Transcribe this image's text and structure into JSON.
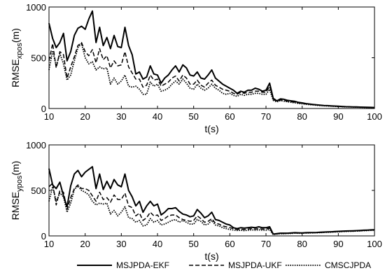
{
  "chart_data": [
    {
      "type": "line",
      "xlabel": "t(s)",
      "ylabel": {
        "base": "RMSE",
        "sub": "xpos",
        "unit": "(m)"
      },
      "xlim": [
        10,
        100
      ],
      "ylim": [
        0,
        1000
      ],
      "xticks": [
        10,
        20,
        30,
        40,
        50,
        60,
        70,
        80,
        90,
        100
      ],
      "yticks": [
        0,
        500,
        1000
      ],
      "grid": false,
      "series": [
        {
          "name": "MSJPDA-EKF",
          "x": [
            10,
            11,
            12,
            13,
            14,
            15,
            16,
            17,
            18,
            19,
            20,
            21,
            22,
            23,
            24,
            25,
            26,
            27,
            28,
            29,
            30,
            31,
            32,
            33,
            34,
            35,
            36,
            37,
            38,
            39,
            40,
            41,
            42,
            43,
            44,
            45,
            46,
            47,
            48,
            49,
            50,
            51,
            52,
            53,
            54,
            55,
            56,
            57,
            58,
            59,
            60,
            61,
            62,
            63,
            64,
            65,
            66,
            67,
            68,
            69,
            70,
            71,
            72,
            73,
            74,
            75,
            76,
            77,
            78,
            79,
            80,
            81,
            82,
            83,
            84,
            85,
            86,
            87,
            88,
            89,
            90,
            91,
            92,
            93,
            94,
            95,
            96,
            97,
            98,
            99,
            100
          ],
          "y": [
            840,
            690,
            600,
            650,
            740,
            470,
            560,
            720,
            790,
            810,
            780,
            880,
            960,
            650,
            800,
            620,
            700,
            590,
            720,
            610,
            600,
            800,
            620,
            530,
            340,
            360,
            290,
            310,
            420,
            340,
            330,
            250,
            300,
            330,
            380,
            420,
            360,
            430,
            400,
            330,
            320,
            360,
            300,
            290,
            330,
            380,
            300,
            270,
            240,
            220,
            200,
            180,
            150,
            170,
            160,
            180,
            180,
            200,
            190,
            170,
            180,
            250,
            100,
            75,
            95,
            90,
            80,
            75,
            70,
            60,
            55,
            48,
            44,
            40,
            36,
            33,
            30,
            28,
            26,
            24,
            22,
            20,
            18,
            17,
            16,
            15,
            14,
            13,
            12,
            11,
            10
          ]
        },
        {
          "name": "MSJPDA-UKF",
          "x": [
            10,
            11,
            12,
            13,
            14,
            15,
            16,
            17,
            18,
            19,
            20,
            21,
            22,
            23,
            24,
            25,
            26,
            27,
            28,
            29,
            30,
            31,
            32,
            33,
            34,
            35,
            36,
            37,
            38,
            39,
            40,
            41,
            42,
            43,
            44,
            45,
            46,
            47,
            48,
            49,
            50,
            51,
            52,
            53,
            54,
            55,
            56,
            57,
            58,
            59,
            60,
            61,
            62,
            63,
            64,
            65,
            66,
            67,
            68,
            69,
            70,
            71,
            72,
            73,
            74,
            75,
            76,
            77,
            78,
            79,
            80,
            81,
            82,
            83,
            84,
            85,
            86,
            87,
            88,
            89,
            90,
            91,
            92,
            93,
            94,
            95,
            96,
            97,
            98,
            99,
            100
          ],
          "y": [
            470,
            640,
            400,
            560,
            530,
            300,
            410,
            510,
            620,
            650,
            560,
            520,
            580,
            450,
            590,
            480,
            520,
            400,
            470,
            420,
            430,
            560,
            410,
            350,
            290,
            290,
            210,
            230,
            330,
            280,
            290,
            220,
            240,
            260,
            300,
            320,
            270,
            330,
            300,
            240,
            240,
            280,
            230,
            210,
            250,
            280,
            230,
            210,
            190,
            180,
            170,
            150,
            140,
            160,
            150,
            160,
            160,
            170,
            170,
            160,
            160,
            220,
            90,
            70,
            85,
            80,
            72,
            66,
            62,
            55,
            50,
            45,
            42,
            38,
            35,
            32,
            29,
            27,
            25,
            23,
            21,
            19,
            17,
            16,
            15,
            14,
            13,
            12,
            11,
            10,
            9
          ]
        },
        {
          "name": "CMSCJPDA",
          "x": [
            10,
            11,
            12,
            13,
            14,
            15,
            16,
            17,
            18,
            19,
            20,
            21,
            22,
            23,
            24,
            25,
            26,
            27,
            28,
            29,
            30,
            31,
            32,
            33,
            34,
            35,
            36,
            37,
            38,
            39,
            40,
            41,
            42,
            43,
            44,
            45,
            46,
            47,
            48,
            49,
            50,
            51,
            52,
            53,
            54,
            55,
            56,
            57,
            58,
            59,
            60,
            61,
            62,
            63,
            64,
            65,
            66,
            67,
            68,
            69,
            70,
            71,
            72,
            73,
            74,
            75,
            76,
            77,
            78,
            79,
            80,
            81,
            82,
            83,
            84,
            85,
            86,
            87,
            88,
            89,
            90,
            91,
            92,
            93,
            94,
            95,
            96,
            97,
            98,
            99,
            100
          ],
          "y": [
            380,
            570,
            420,
            540,
            440,
            280,
            330,
            470,
            600,
            640,
            500,
            440,
            460,
            380,
            410,
            390,
            400,
            240,
            300,
            240,
            270,
            330,
            220,
            210,
            220,
            190,
            140,
            140,
            260,
            220,
            240,
            170,
            180,
            200,
            240,
            270,
            240,
            290,
            250,
            200,
            190,
            240,
            200,
            180,
            200,
            240,
            200,
            180,
            150,
            140,
            150,
            130,
            120,
            140,
            130,
            140,
            140,
            150,
            150,
            140,
            140,
            190,
            80,
            65,
            78,
            72,
            66,
            60,
            56,
            50,
            46,
            42,
            38,
            35,
            32,
            29,
            27,
            25,
            23,
            21,
            19,
            17,
            16,
            15,
            14,
            13,
            12,
            11,
            10,
            9,
            8
          ]
        }
      ]
    },
    {
      "type": "line",
      "xlabel": "t(s)",
      "ylabel": {
        "base": "RMSE",
        "sub": "ypos",
        "unit": "(m)"
      },
      "xlim": [
        10,
        100
      ],
      "ylim": [
        0,
        1000
      ],
      "xticks": [
        10,
        20,
        30,
        40,
        50,
        60,
        70,
        80,
        90,
        100
      ],
      "yticks": [
        0,
        500,
        1000
      ],
      "grid": false,
      "series": [
        {
          "name": "MSJPDA-EKF",
          "x": [
            10,
            11,
            12,
            13,
            14,
            15,
            16,
            17,
            18,
            19,
            20,
            21,
            22,
            23,
            24,
            25,
            26,
            27,
            28,
            29,
            30,
            31,
            32,
            33,
            34,
            35,
            36,
            37,
            38,
            39,
            40,
            41,
            42,
            43,
            44,
            45,
            46,
            47,
            48,
            49,
            50,
            51,
            52,
            53,
            54,
            55,
            56,
            57,
            58,
            59,
            60,
            61,
            62,
            63,
            64,
            65,
            66,
            67,
            68,
            69,
            70,
            71,
            72,
            73,
            74,
            75,
            76,
            77,
            78,
            79,
            80,
            81,
            82,
            83,
            84,
            85,
            86,
            87,
            88,
            89,
            90,
            91,
            92,
            93,
            94,
            95,
            96,
            97,
            98,
            99,
            100
          ],
          "y": [
            740,
            560,
            520,
            590,
            440,
            320,
            550,
            680,
            720,
            650,
            700,
            730,
            760,
            520,
            680,
            510,
            600,
            520,
            620,
            560,
            540,
            680,
            500,
            430,
            330,
            380,
            260,
            330,
            380,
            330,
            350,
            230,
            260,
            300,
            300,
            310,
            270,
            240,
            230,
            210,
            220,
            290,
            250,
            200,
            220,
            260,
            180,
            170,
            150,
            130,
            120,
            90,
            80,
            90,
            85,
            90,
            95,
            90,
            100,
            90,
            90,
            100,
            20,
            25,
            30,
            30,
            30,
            32,
            35,
            34,
            33,
            35,
            36,
            37,
            38,
            40,
            42,
            44,
            45,
            48,
            50,
            52,
            54,
            55,
            56,
            58,
            60,
            62,
            64,
            66,
            68
          ]
        },
        {
          "name": "MSJPDA-UKF",
          "x": [
            10,
            11,
            12,
            13,
            14,
            15,
            16,
            17,
            18,
            19,
            20,
            21,
            22,
            23,
            24,
            25,
            26,
            27,
            28,
            29,
            30,
            31,
            32,
            33,
            34,
            35,
            36,
            37,
            38,
            39,
            40,
            41,
            42,
            43,
            44,
            45,
            46,
            47,
            48,
            49,
            50,
            51,
            52,
            53,
            54,
            55,
            56,
            57,
            58,
            59,
            60,
            61,
            62,
            63,
            64,
            65,
            66,
            67,
            68,
            69,
            70,
            71,
            72,
            73,
            74,
            75,
            76,
            77,
            78,
            79,
            80,
            81,
            82,
            83,
            84,
            85,
            86,
            87,
            88,
            89,
            90,
            91,
            92,
            93,
            94,
            95,
            96,
            97,
            98,
            99,
            100
          ],
          "y": [
            540,
            580,
            340,
            500,
            480,
            290,
            420,
            520,
            560,
            520,
            520,
            500,
            440,
            380,
            480,
            400,
            420,
            370,
            450,
            400,
            400,
            470,
            330,
            310,
            220,
            250,
            170,
            200,
            260,
            220,
            230,
            170,
            190,
            220,
            230,
            230,
            200,
            180,
            170,
            160,
            170,
            220,
            190,
            150,
            160,
            190,
            140,
            130,
            110,
            100,
            90,
            80,
            70,
            75,
            70,
            75,
            80,
            75,
            80,
            75,
            75,
            85,
            18,
            22,
            26,
            27,
            28,
            30,
            32,
            31,
            31,
            33,
            34,
            35,
            36,
            38,
            40,
            42,
            43,
            45,
            47,
            49,
            51,
            52,
            53,
            55,
            57,
            59,
            61,
            63,
            65
          ]
        },
        {
          "name": "CMSCJPDA",
          "x": [
            10,
            11,
            12,
            13,
            14,
            15,
            16,
            17,
            18,
            19,
            20,
            21,
            22,
            23,
            24,
            25,
            26,
            27,
            28,
            29,
            30,
            31,
            32,
            33,
            34,
            35,
            36,
            37,
            38,
            39,
            40,
            41,
            42,
            43,
            44,
            45,
            46,
            47,
            48,
            49,
            50,
            51,
            52,
            53,
            54,
            55,
            56,
            57,
            58,
            59,
            60,
            61,
            62,
            63,
            64,
            65,
            66,
            67,
            68,
            69,
            70,
            71,
            72,
            73,
            74,
            75,
            76,
            77,
            78,
            79,
            80,
            81,
            82,
            83,
            84,
            85,
            86,
            87,
            88,
            89,
            90,
            91,
            92,
            93,
            94,
            95,
            96,
            97,
            98,
            99,
            100
          ],
          "y": [
            380,
            540,
            380,
            470,
            430,
            260,
            360,
            510,
            550,
            500,
            480,
            450,
            380,
            340,
            360,
            350,
            360,
            240,
            280,
            220,
            260,
            320,
            200,
            190,
            150,
            170,
            110,
            120,
            190,
            150,
            170,
            120,
            130,
            150,
            170,
            180,
            150,
            170,
            150,
            130,
            130,
            180,
            160,
            120,
            130,
            170,
            120,
            110,
            90,
            80,
            70,
            65,
            60,
            62,
            58,
            62,
            66,
            62,
            66,
            62,
            62,
            70,
            15,
            20,
            24,
            25,
            26,
            28,
            30,
            29,
            29,
            31,
            32,
            33,
            34,
            36,
            38,
            40,
            41,
            43,
            45,
            47,
            49,
            50,
            51,
            53,
            55,
            57,
            59,
            61,
            63
          ]
        }
      ]
    }
  ],
  "legend": {
    "placement": "bottom",
    "entries": [
      {
        "name": "MSJPDA-EKF",
        "style": "solid"
      },
      {
        "name": "MSJPDA-UKF",
        "style": "dashed"
      },
      {
        "name": "CMSCJPDA",
        "style": "dotted"
      }
    ]
  }
}
